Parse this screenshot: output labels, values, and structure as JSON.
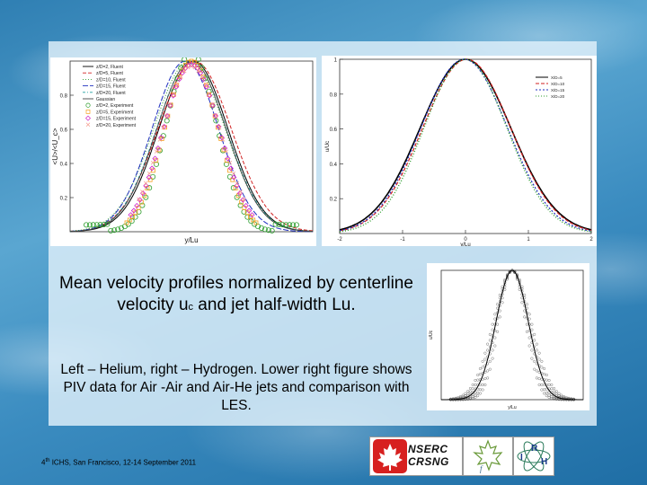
{
  "caption": {
    "main_prefix": "Mean velocity profiles normalized by centerline velocity u",
    "main_subscript": "c",
    "main_suffix": " and jet half-width Lu.",
    "sub": "Left – Helium, right – Hydrogen. Lower right figure shows  PIV data for Air -Air and Air-He jets and comparison with LES."
  },
  "footer": {
    "superscript": "th",
    "number": "4",
    "text": " ICHS, San Francisco, 12-14 September 2011"
  },
  "logos": {
    "nserc_line1": "NSERC",
    "nserc_line2": "CRSNG",
    "irh_i": "I",
    "irh_r": "R",
    "irh_h": "H"
  },
  "colors": {
    "nserc_red": "#d7201f",
    "experiment_green": "#2e9e2e",
    "experiment_orange": "#f5a020",
    "experiment_magenta": "#d020c8",
    "fluent_red": "#d02020",
    "fluent_blue": "#2030c0"
  },
  "chart_data": [
    {
      "type": "line",
      "panel": "left-helium",
      "xlabel": "y/Lu",
      "ylabel": "<U>/<U_c>",
      "yticks": [
        "0.2",
        "0.4",
        "0.6",
        "0.8"
      ],
      "xlim": [
        -3,
        3
      ],
      "ylim": [
        0,
        1
      ],
      "legend_placement": "top-left",
      "legend": [
        {
          "name": "z/D=2, Fluent",
          "color": "#000000",
          "dash": "none"
        },
        {
          "name": "z/D=5, Fluent",
          "color": "#d02020",
          "dash": "4,2"
        },
        {
          "name": "z/D=10, Fluent",
          "color": "#2e9e2e",
          "dash": "1,2"
        },
        {
          "name": "z/D=15, Fluent",
          "color": "#2030c0",
          "dash": "6,2"
        },
        {
          "name": "z/D=20, Fluent",
          "color": "#20a0a0",
          "dash": "3,2,1,2"
        },
        {
          "name": "Gaussian",
          "color": "#444444",
          "dash": "none"
        },
        {
          "name": "z/D=2, Experiment",
          "color": "#2e9e2e",
          "marker": "circle"
        },
        {
          "name": "z/D=5, Experiment",
          "color": "#f5a020",
          "marker": "square"
        },
        {
          "name": "z/D=15, Experiment",
          "color": "#d020c8",
          "marker": "diamond"
        },
        {
          "name": "z/D=20, Experiment",
          "color": "#f59a8a",
          "marker": "cross"
        }
      ],
      "series": [
        {
          "name": "Gaussian",
          "x": [
            -3,
            -2.5,
            -2,
            -1.5,
            -1,
            -0.5,
            0,
            0.5,
            1,
            1.5,
            2,
            2.5,
            3
          ],
          "y": [
            0.002,
            0.013,
            0.063,
            0.21,
            0.5,
            0.84,
            1.0,
            0.84,
            0.5,
            0.21,
            0.063,
            0.013,
            0.002
          ]
        },
        {
          "name": "z/D=2, Experiment",
          "x": [
            -2.2,
            -1.8,
            -1.5,
            -1.2,
            -1,
            -0.8,
            -0.5,
            0,
            0.5,
            0.8,
            1,
            1.2,
            1.5,
            1.8,
            2.2
          ],
          "y": [
            0.03,
            0.08,
            0.12,
            0.22,
            0.36,
            0.55,
            0.8,
            1.05,
            0.8,
            0.55,
            0.36,
            0.22,
            0.12,
            0.08,
            0.03
          ]
        }
      ]
    },
    {
      "type": "line",
      "panel": "right-hydrogen",
      "xlabel": "y/Lu",
      "ylabel": "u/Uc",
      "xticks": [
        "-2",
        "-1",
        "0",
        "1",
        "2"
      ],
      "yticks": [
        "0.2",
        "0.4",
        "0.6",
        "0.8",
        "1"
      ],
      "xlim": [
        -2,
        2
      ],
      "ylim": [
        0,
        1
      ],
      "legend_placement": "top-right",
      "legend": [
        {
          "name": "X/D=5",
          "color": "#000000",
          "dash": "none"
        },
        {
          "name": "X/D=10",
          "color": "#d02020",
          "dash": "4,2"
        },
        {
          "name": "X/D=15",
          "color": "#2030c0",
          "dash": "2,2"
        },
        {
          "name": "X/D=20",
          "color": "#2e9e2e",
          "dash": "1,2"
        }
      ]
    },
    {
      "type": "scatter",
      "panel": "lower-right-piv",
      "xlabel": "y/Lu",
      "ylabel": "u/Uc",
      "legend_placement": "top-left",
      "xlim": [
        -3,
        3
      ],
      "ylim": [
        0,
        1
      ]
    }
  ]
}
